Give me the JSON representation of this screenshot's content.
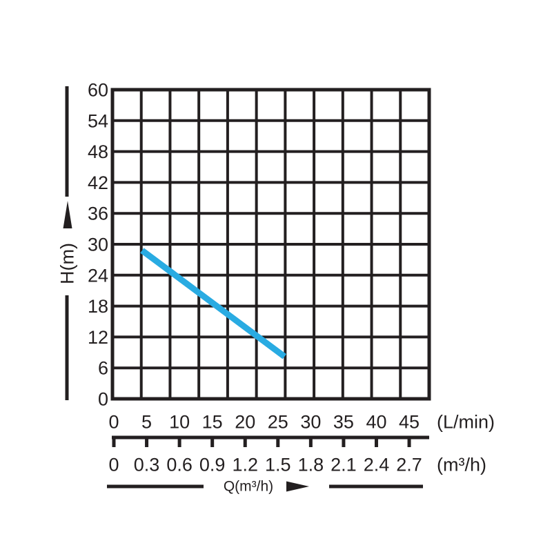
{
  "chart_data": {
    "type": "line",
    "title": "",
    "xlabel": "Q(m³/h)",
    "ylabel": "H(m)",
    "x_unit_lmin": "(L/min)",
    "x_unit_m3h": "(m³/h)",
    "x_ticks_lmin": [
      "0",
      "5",
      "10",
      "15",
      "20",
      "25",
      "30",
      "35",
      "40",
      "45"
    ],
    "x_ticks_m3h": [
      "0",
      "0.3",
      "0.6",
      "0.9",
      "1.2",
      "1.5",
      "1.8",
      "2.1",
      "2.4",
      "2.7"
    ],
    "y_ticks": [
      "60",
      "54",
      "48",
      "42",
      "36",
      "30",
      "24",
      "18",
      "12",
      "6",
      "0"
    ],
    "xlim_lmin": [
      0,
      45
    ],
    "xlim_m3h": [
      0,
      2.7
    ],
    "ylim": [
      0,
      60
    ],
    "grid": "on",
    "legend": "none",
    "series": [
      {
        "name": "head-vs-flow-curve",
        "color": "#29abe2",
        "points_lmin_m": [
          [
            4.3,
            28.8
          ],
          [
            26.0,
            8.2
          ]
        ]
      }
    ],
    "colors": {
      "ink": "#231f20",
      "curve": "#29abe2",
      "background": "#ffffff"
    }
  }
}
